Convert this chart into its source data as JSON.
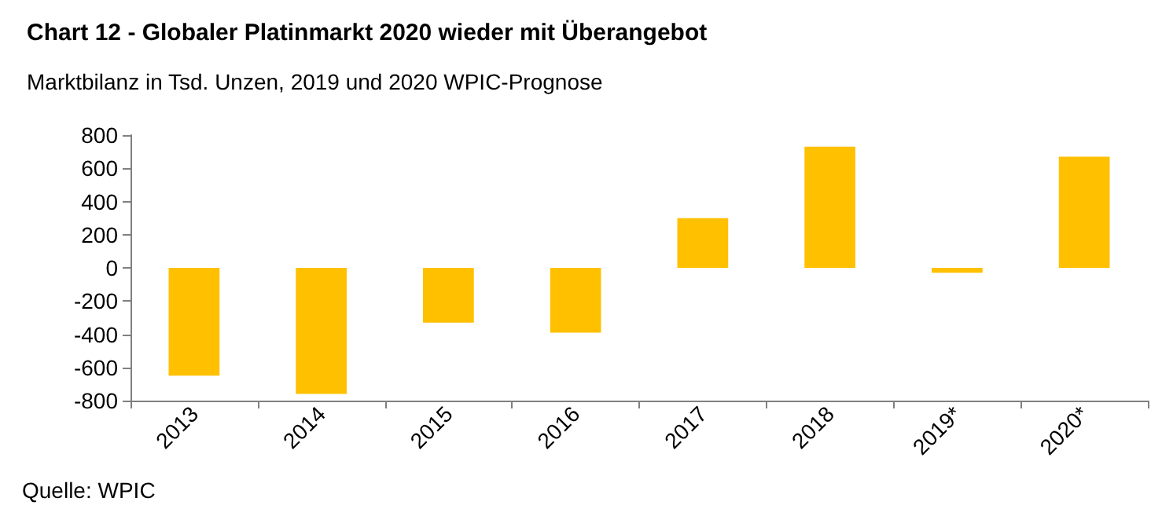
{
  "chart_data": {
    "type": "bar",
    "title": "Chart 12 - Globaler Platinmarkt 2020 wieder mit Überangebot",
    "subtitle": "Marktbilanz in Tsd. Unzen, 2019 und 2020 WPIC-Prognose",
    "annotations": [
      "Quelle: WPIC"
    ],
    "categories": [
      "2013",
      "2014",
      "2015",
      "2016",
      "2017",
      "2018",
      "2019*",
      "2020*"
    ],
    "values": [
      -650,
      -760,
      -330,
      -390,
      300,
      730,
      -30,
      670
    ],
    "color": "#ffc000",
    "ylim": [
      -800,
      800
    ],
    "yticks": [
      -800,
      -600,
      -400,
      -200,
      0,
      200,
      400,
      600,
      800
    ],
    "grid": false
  }
}
